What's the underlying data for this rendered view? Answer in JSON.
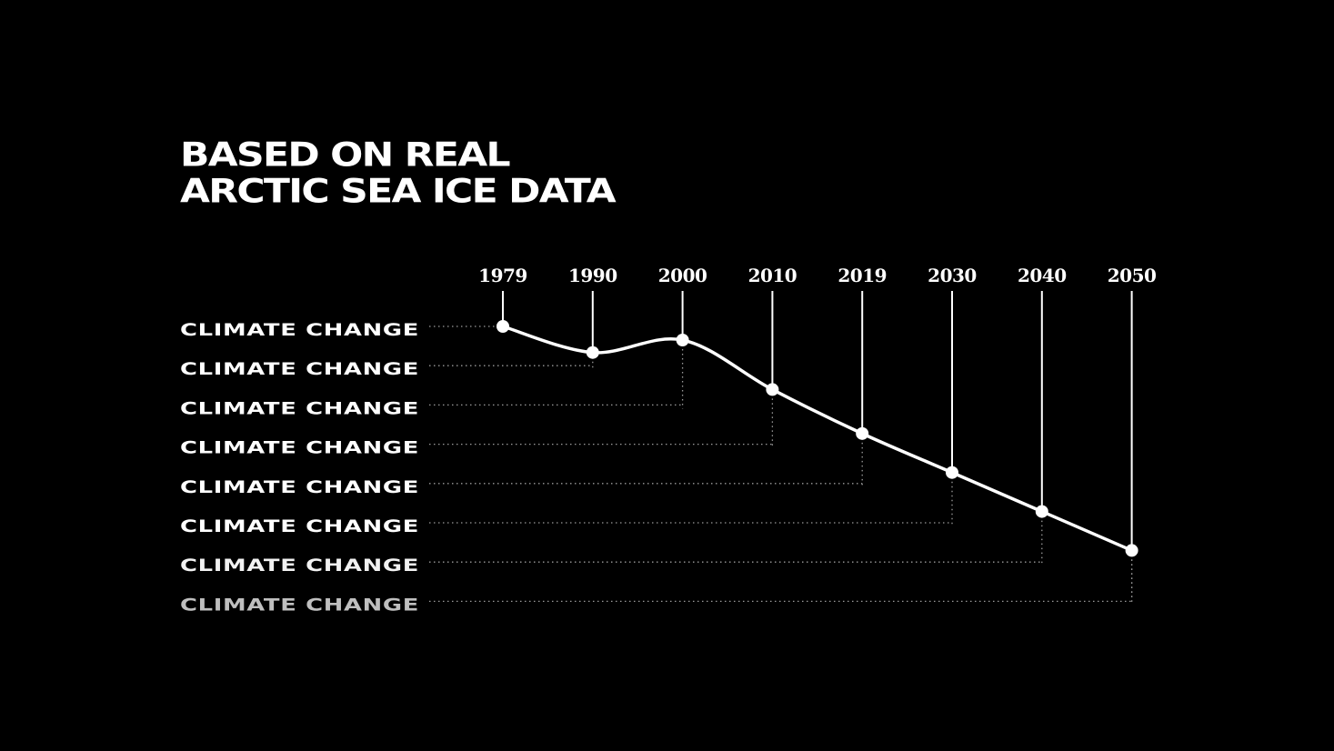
{
  "title": {
    "line1": "BASED ON REAL",
    "line2": "ARCTIC SEA ICE DATA"
  },
  "colors": {
    "background": "#000000",
    "foreground": "#ffffff",
    "guide": "#9a9a9a"
  },
  "chart_data": {
    "type": "line",
    "title": "BASED ON REAL ARCTIC SEA ICE DATA",
    "categories": [
      "1979",
      "1990",
      "2000",
      "2010",
      "2019",
      "2030",
      "2040",
      "2050"
    ],
    "row_labels": [
      "CLIMATE CHANGE",
      "CLIMATE CHANGE",
      "CLIMATE CHANGE",
      "CLIMATE CHANGE",
      "CLIMATE CHANGE",
      "CLIMATE CHANGE",
      "CLIMATE CHANGE",
      "CLIMATE CHANGE"
    ],
    "row_label_opacity": [
      1,
      1,
      1,
      1,
      1,
      1,
      0.95,
      0.75
    ],
    "x_position": "top",
    "values": [
      7,
      6.33,
      6.65,
      5.38,
      4.25,
      3.25,
      2.25,
      1.25
    ],
    "ylim": [
      0,
      7
    ],
    "curve": "smooth",
    "legend": "none",
    "grid": false
  }
}
